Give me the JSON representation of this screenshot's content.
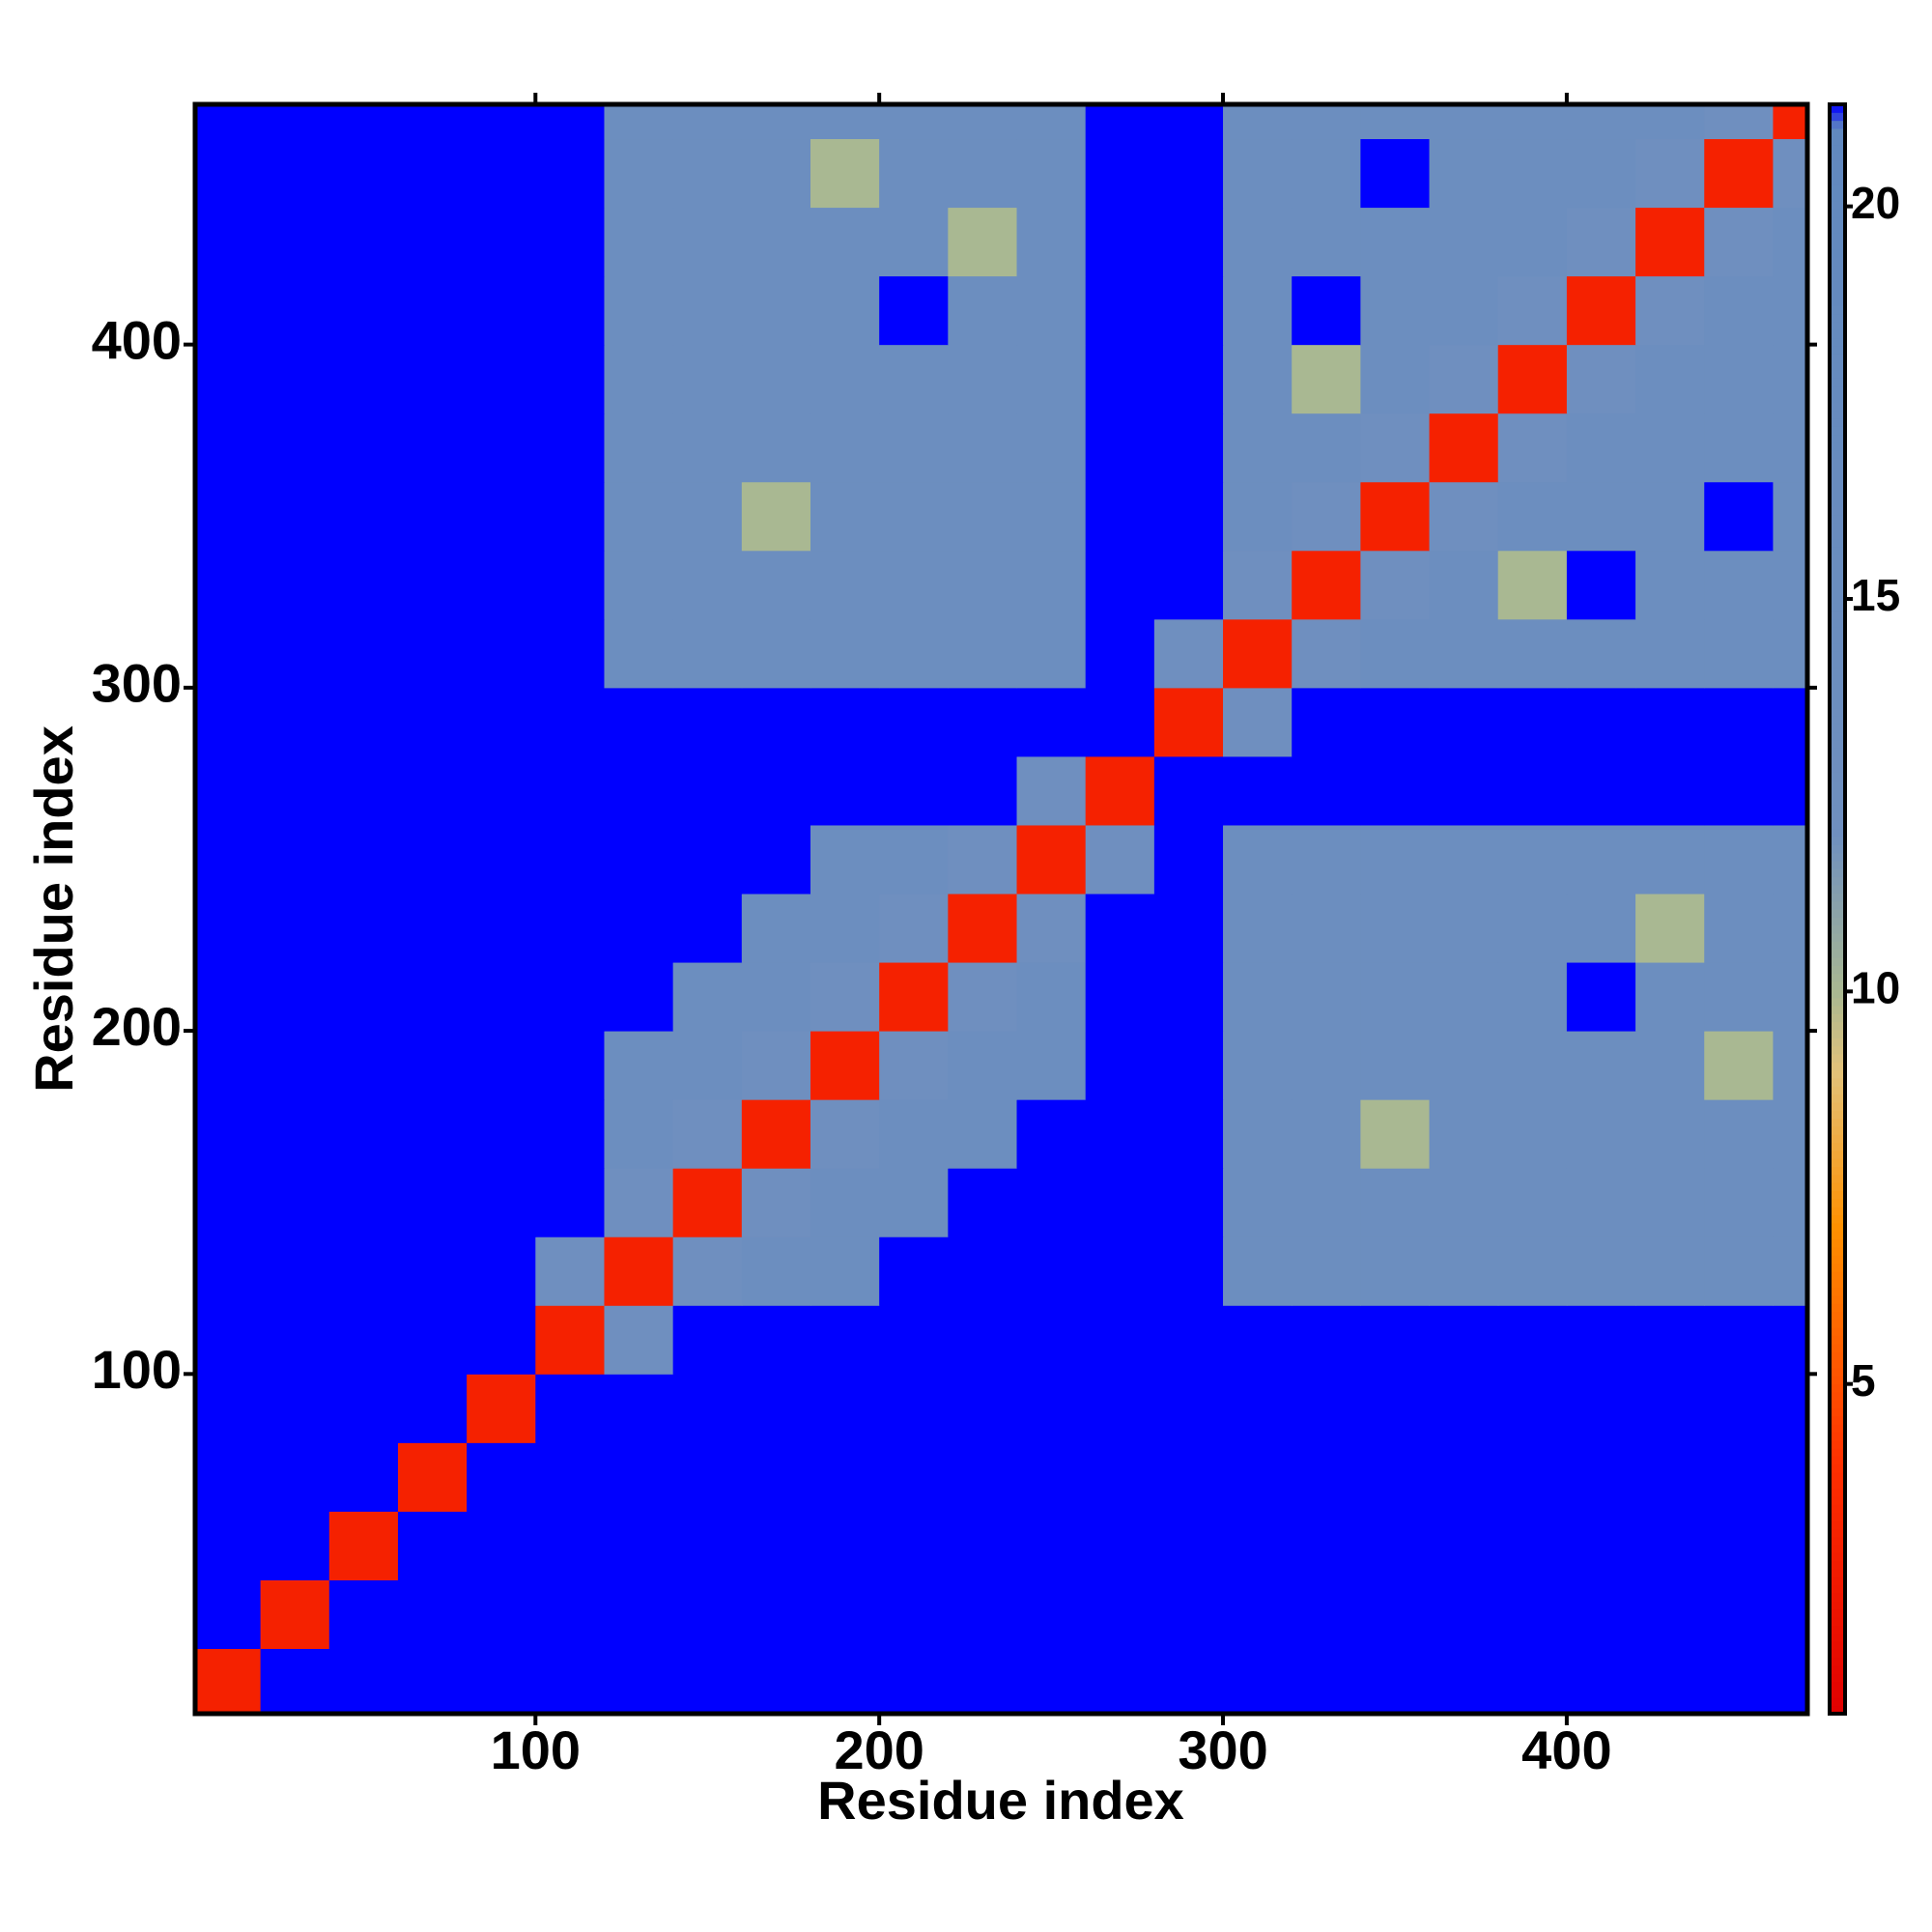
{
  "chart_data": {
    "type": "heatmap",
    "xlabel": "Residue index",
    "ylabel": "Residue index",
    "xlim": [
      1,
      470
    ],
    "ylim": [
      1,
      470
    ],
    "xticks": [
      100,
      200,
      300,
      400
    ],
    "yticks": [
      100,
      200,
      300,
      400
    ],
    "xbins": [
      1,
      20,
      40,
      60,
      80,
      100,
      120,
      140,
      160,
      180,
      200,
      220,
      240,
      260,
      280,
      300,
      320,
      340,
      360,
      380,
      400,
      420,
      440,
      460,
      470
    ],
    "ybins": [
      1,
      20,
      40,
      60,
      80,
      100,
      120,
      140,
      160,
      180,
      200,
      220,
      240,
      260,
      280,
      300,
      320,
      340,
      360,
      380,
      400,
      420,
      440,
      460,
      470
    ],
    "zlim": [
      0.8,
      21.3
    ],
    "zticks": [
      5,
      10,
      15,
      20
    ],
    "colorscale": [
      [
        0.8,
        "#e00000"
      ],
      [
        4,
        "#ff3000"
      ],
      [
        7,
        "#ff9000"
      ],
      [
        9,
        "#e2c27a"
      ],
      [
        10,
        "#a9b892"
      ],
      [
        12,
        "#6f8fbf"
      ],
      [
        21,
        "#6189bf"
      ],
      [
        21.3,
        "#0000ff"
      ]
    ],
    "z": [
      [
        3,
        22,
        22,
        22,
        22,
        22,
        22,
        22,
        22,
        22,
        22,
        22,
        22,
        22,
        22,
        22,
        22,
        22,
        22,
        22,
        22,
        22,
        22,
        22
      ],
      [
        22,
        3,
        22,
        22,
        22,
        22,
        22,
        22,
        22,
        22,
        22,
        22,
        22,
        22,
        22,
        22,
        22,
        22,
        22,
        22,
        22,
        22,
        22,
        22
      ],
      [
        22,
        22,
        3,
        22,
        22,
        22,
        22,
        22,
        22,
        22,
        22,
        22,
        22,
        22,
        22,
        22,
        22,
        22,
        22,
        22,
        22,
        22,
        22,
        22
      ],
      [
        22,
        22,
        22,
        3,
        22,
        22,
        22,
        22,
        22,
        22,
        22,
        22,
        22,
        22,
        22,
        22,
        22,
        22,
        22,
        22,
        22,
        22,
        22,
        22
      ],
      [
        22,
        22,
        22,
        22,
        3,
        22,
        22,
        22,
        22,
        22,
        22,
        22,
        22,
        22,
        22,
        22,
        22,
        22,
        22,
        22,
        22,
        22,
        22,
        22
      ],
      [
        22,
        22,
        22,
        22,
        22,
        3,
        12,
        22,
        22,
        22,
        22,
        22,
        22,
        22,
        22,
        22,
        22,
        22,
        22,
        22,
        22,
        22,
        22,
        22
      ],
      [
        22,
        22,
        22,
        22,
        22,
        12,
        3,
        12,
        14,
        14,
        22,
        22,
        22,
        22,
        22,
        14,
        14,
        14,
        14,
        14,
        14,
        14,
        14,
        14
      ],
      [
        22,
        22,
        22,
        22,
        22,
        22,
        12,
        3,
        12,
        14,
        14,
        22,
        22,
        22,
        22,
        14,
        14,
        14,
        14,
        14,
        14,
        14,
        14,
        14
      ],
      [
        22,
        22,
        22,
        22,
        22,
        22,
        14,
        12,
        3,
        12,
        14,
        14,
        22,
        22,
        22,
        14,
        14,
        10,
        14,
        14,
        14,
        14,
        14,
        14
      ],
      [
        22,
        22,
        22,
        22,
        22,
        22,
        14,
        14,
        12,
        3,
        12,
        14,
        14,
        22,
        22,
        14,
        14,
        14,
        14,
        14,
        14,
        14,
        10,
        14
      ],
      [
        22,
        22,
        22,
        22,
        22,
        22,
        22,
        14,
        14,
        12,
        3,
        12,
        14,
        22,
        22,
        14,
        14,
        14,
        14,
        14,
        22,
        14,
        14,
        14
      ],
      [
        22,
        22,
        22,
        22,
        22,
        22,
        22,
        22,
        14,
        14,
        12,
        3,
        12,
        22,
        22,
        14,
        14,
        14,
        14,
        14,
        14,
        10,
        14,
        14
      ],
      [
        22,
        22,
        22,
        22,
        22,
        22,
        22,
        22,
        22,
        14,
        14,
        12,
        3,
        12,
        22,
        14,
        14,
        14,
        14,
        14,
        14,
        14,
        14,
        14
      ],
      [
        22,
        22,
        22,
        22,
        22,
        22,
        22,
        22,
        22,
        22,
        22,
        22,
        12,
        3,
        22,
        22,
        22,
        22,
        22,
        22,
        22,
        22,
        22,
        22
      ],
      [
        22,
        22,
        22,
        22,
        22,
        22,
        22,
        22,
        22,
        22,
        22,
        22,
        22,
        22,
        3,
        12,
        22,
        22,
        22,
        22,
        22,
        22,
        22,
        22
      ],
      [
        22,
        22,
        22,
        22,
        22,
        22,
        14,
        14,
        14,
        14,
        14,
        14,
        14,
        22,
        12,
        3,
        12,
        14,
        14,
        14,
        14,
        14,
        14,
        14
      ],
      [
        22,
        22,
        22,
        22,
        22,
        22,
        14,
        14,
        14,
        14,
        14,
        14,
        14,
        22,
        22,
        12,
        3,
        12,
        14,
        10,
        22,
        14,
        14,
        14
      ],
      [
        22,
        22,
        22,
        22,
        22,
        22,
        14,
        14,
        10,
        14,
        14,
        14,
        14,
        22,
        22,
        14,
        12,
        3,
        12,
        14,
        14,
        14,
        22,
        14
      ],
      [
        22,
        22,
        22,
        22,
        22,
        22,
        14,
        14,
        14,
        14,
        14,
        14,
        14,
        22,
        22,
        14,
        14,
        12,
        3,
        12,
        14,
        14,
        14,
        14
      ],
      [
        22,
        22,
        22,
        22,
        22,
        22,
        14,
        14,
        14,
        14,
        14,
        14,
        14,
        22,
        22,
        14,
        10,
        14,
        12,
        3,
        12,
        14,
        14,
        14
      ],
      [
        22,
        22,
        22,
        22,
        22,
        22,
        14,
        14,
        14,
        14,
        22,
        14,
        14,
        22,
        22,
        14,
        22,
        14,
        14,
        12,
        3,
        12,
        14,
        14
      ],
      [
        22,
        22,
        22,
        22,
        22,
        22,
        14,
        14,
        14,
        14,
        14,
        10,
        14,
        22,
        22,
        14,
        14,
        14,
        14,
        14,
        12,
        3,
        12,
        14
      ],
      [
        22,
        22,
        22,
        22,
        22,
        22,
        14,
        14,
        14,
        10,
        14,
        14,
        14,
        22,
        22,
        14,
        14,
        22,
        14,
        14,
        14,
        12,
        3,
        12
      ],
      [
        22,
        22,
        22,
        22,
        22,
        22,
        14,
        14,
        14,
        14,
        14,
        14,
        14,
        22,
        22,
        14,
        14,
        14,
        14,
        14,
        14,
        14,
        12,
        3
      ]
    ]
  }
}
